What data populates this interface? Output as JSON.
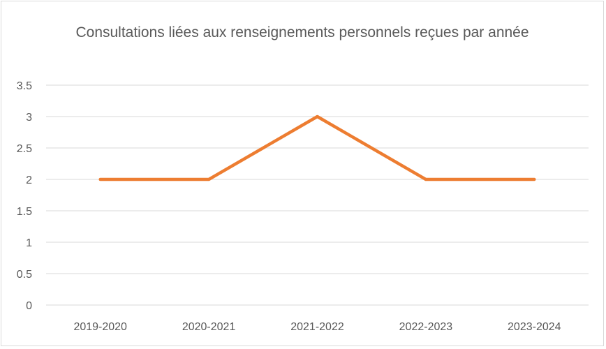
{
  "chart_data": {
    "type": "line",
    "title": "Consultations liées aux renseignements personnels reçues par année",
    "xlabel": "",
    "ylabel": "",
    "categories": [
      "2019-2020",
      "2020-2021",
      "2021-2022",
      "2022-2023",
      "2023-2024"
    ],
    "series": [
      {
        "values": [
          2,
          2,
          3,
          2,
          2
        ],
        "color": "#ed7d31"
      }
    ],
    "ylim": [
      0,
      3.5
    ],
    "yticks": [
      0,
      0.5,
      1,
      1.5,
      2,
      2.5,
      3,
      3.5
    ],
    "ytick_labels": [
      "0",
      "0.5",
      "1",
      "1.5",
      "2",
      "2.5",
      "3",
      "3.5"
    ],
    "grid": true,
    "gridline_color": "#d9d9d9",
    "legend": "none"
  }
}
